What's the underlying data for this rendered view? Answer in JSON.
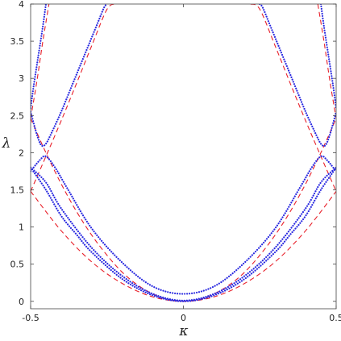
{
  "chart_data": {
    "type": "line",
    "title": "",
    "xlabel": "κ",
    "ylabel": "λ",
    "xlim": [
      -0.5,
      0.5
    ],
    "ylim": [
      -0.1,
      4
    ],
    "xticks": [
      -0.5,
      0,
      0.5
    ],
    "xtick_labels": [
      "-0.5",
      "0",
      "0.5"
    ],
    "yticks": [
      0,
      0.5,
      1,
      1.5,
      2,
      2.5,
      3,
      3.5,
      4
    ],
    "ytick_labels": [
      "0",
      "0.5",
      "1",
      "1.5",
      "2",
      "2.5",
      "3",
      "3.5",
      "4"
    ],
    "grid": false,
    "legend": "none",
    "series": [
      {
        "style": "dashed",
        "color": "#e8202a",
        "x": [
          -0.5,
          -0.4,
          -0.3,
          -0.2,
          -0.1,
          0,
          0.1,
          0.2,
          0.3,
          0.4,
          0.5
        ],
        "y": [
          1.48,
          0.95,
          0.53,
          0.24,
          0.06,
          0.0,
          0.06,
          0.24,
          0.53,
          0.95,
          1.48
        ]
      },
      {
        "style": "dashed",
        "color": "#e8202a",
        "x": [
          -0.5,
          -0.45,
          -0.4,
          -0.35,
          -0.3,
          -0.25,
          -0.2,
          -0.15,
          -0.1,
          -0.05,
          0.0
        ],
        "y": [
          2.46,
          2.0,
          1.58,
          1.21,
          0.89,
          0.62,
          0.39,
          0.22,
          0.1,
          0.02,
          0.0
        ]
      },
      {
        "style": "dashed",
        "color": "#e8202a",
        "x": [
          0.0,
          0.05,
          0.1,
          0.15,
          0.2,
          0.25,
          0.3,
          0.35,
          0.4,
          0.45,
          0.5
        ],
        "y": [
          0.0,
          0.02,
          0.1,
          0.22,
          0.39,
          0.62,
          0.89,
          1.21,
          1.58,
          2.0,
          2.46
        ]
      },
      {
        "style": "dashed",
        "color": "#e8202a",
        "x": [
          -0.5,
          -0.45,
          -0.4,
          -0.35,
          -0.3,
          -0.25,
          -0.22
        ],
        "y": [
          1.48,
          1.95,
          2.43,
          2.93,
          3.44,
          3.93,
          4.0
        ]
      },
      {
        "style": "dashed",
        "color": "#e8202a",
        "x": [
          0.22,
          0.25,
          0.3,
          0.35,
          0.4,
          0.45,
          0.5
        ],
        "y": [
          4.0,
          3.93,
          3.44,
          2.93,
          2.43,
          1.95,
          1.48
        ]
      },
      {
        "style": "dashed",
        "color": "#e8202a",
        "x": [
          -0.5,
          -0.48,
          -0.46,
          -0.44
        ],
        "y": [
          2.46,
          2.95,
          3.5,
          4.0
        ]
      },
      {
        "style": "dashed",
        "color": "#e8202a",
        "x": [
          0.44,
          0.46,
          0.48,
          0.5
        ],
        "y": [
          4.0,
          3.5,
          2.95,
          2.46
        ]
      },
      {
        "style": "dotted",
        "color": "#2a2ae0",
        "x": [
          -0.5,
          -0.45,
          -0.4,
          -0.3,
          -0.2,
          -0.1,
          0.0,
          0.1,
          0.2,
          0.3,
          0.4,
          0.45,
          0.5
        ],
        "y": [
          1.8,
          1.6,
          1.25,
          0.72,
          0.34,
          0.1,
          0.01,
          0.1,
          0.34,
          0.72,
          1.25,
          1.6,
          1.8
        ]
      },
      {
        "style": "dotted",
        "color": "#2a2ae0",
        "x": [
          -0.5,
          -0.47,
          -0.45,
          -0.42,
          -0.38,
          -0.3,
          -0.2,
          -0.1,
          0.0,
          0.1,
          0.2,
          0.3,
          0.38,
          0.42,
          0.45,
          0.47,
          0.5
        ],
        "y": [
          1.75,
          1.9,
          1.95,
          1.8,
          1.52,
          0.98,
          0.52,
          0.2,
          0.1,
          0.2,
          0.52,
          0.98,
          1.52,
          1.8,
          1.95,
          1.9,
          1.75
        ]
      },
      {
        "style": "dotted",
        "color": "#2a2ae0",
        "x": [
          -0.5,
          -0.45,
          -0.4,
          -0.35,
          -0.3,
          -0.2,
          -0.1,
          0.0,
          0.1,
          0.2,
          0.3,
          0.35,
          0.4,
          0.45,
          0.5
        ],
        "y": [
          1.8,
          1.5,
          1.15,
          0.9,
          0.66,
          0.3,
          0.08,
          0.0,
          0.08,
          0.3,
          0.66,
          0.9,
          1.15,
          1.5,
          1.8
        ]
      },
      {
        "style": "dotted",
        "color": "#2a2ae0",
        "x": [
          -0.5,
          -0.48,
          -0.465,
          -0.45,
          -0.43,
          -0.4,
          -0.37,
          -0.34,
          -0.31,
          -0.28,
          -0.26,
          -0.25
        ],
        "y": [
          2.55,
          2.25,
          2.1,
          2.12,
          2.28,
          2.55,
          2.85,
          3.15,
          3.45,
          3.75,
          3.95,
          4.0
        ]
      },
      {
        "style": "dotted",
        "color": "#2a2ae0",
        "x": [
          0.25,
          0.26,
          0.28,
          0.31,
          0.34,
          0.37,
          0.4,
          0.43,
          0.45,
          0.465,
          0.48,
          0.5
        ],
        "y": [
          4.0,
          3.95,
          3.75,
          3.45,
          3.15,
          2.85,
          2.55,
          2.28,
          2.12,
          2.1,
          2.25,
          2.55
        ]
      },
      {
        "style": "dotted",
        "color": "#2a2ae0",
        "x": [
          -0.5,
          -0.49,
          -0.475,
          -0.46,
          -0.45
        ],
        "y": [
          2.6,
          2.9,
          3.3,
          3.7,
          4.0
        ]
      },
      {
        "style": "dotted",
        "color": "#2a2ae0",
        "x": [
          0.45,
          0.46,
          0.475,
          0.49,
          0.5
        ],
        "y": [
          4.0,
          3.7,
          3.3,
          2.9,
          2.6
        ]
      }
    ]
  }
}
